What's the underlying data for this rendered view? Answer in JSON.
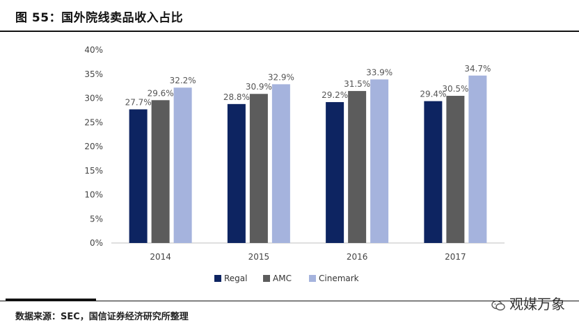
{
  "figure": {
    "title": "图 55：国外院线卖品收入占比",
    "source": "数据来源：SEC，国信证券经济研究所整理",
    "watermark": "观媒万象"
  },
  "colors": {
    "regal": "#0d2461",
    "amc": "#5c5c5c",
    "cinemark": "#a5b3dd",
    "axis_text": "#444444",
    "label_text": "#555555"
  },
  "chart_data": {
    "type": "bar",
    "title": "国外院线卖品收入占比",
    "categories": [
      "2014",
      "2015",
      "2016",
      "2017"
    ],
    "series": [
      {
        "name": "Regal",
        "values": [
          27.7,
          28.8,
          29.2,
          29.4
        ],
        "labels": [
          "27.7%",
          "28.8%",
          "29.2%",
          "29.4%"
        ]
      },
      {
        "name": "AMC",
        "values": [
          29.6,
          30.9,
          31.5,
          30.5
        ],
        "labels": [
          "29.6%",
          "30.9%",
          "31.5%",
          "30.5%"
        ]
      },
      {
        "name": "Cinemark",
        "values": [
          32.2,
          32.9,
          33.9,
          34.7
        ],
        "labels": [
          "32.2%",
          "32.9%",
          "33.9%",
          "34.7%"
        ]
      }
    ],
    "ylim": [
      0,
      40
    ],
    "yticks": [
      0,
      5,
      10,
      15,
      20,
      25,
      30,
      35,
      40
    ],
    "ytick_labels": [
      "0%",
      "5%",
      "10%",
      "15%",
      "20%",
      "25%",
      "30%",
      "35%",
      "40%"
    ],
    "xlabel": "",
    "ylabel": "",
    "grid": false,
    "legend_position": "bottom-center"
  }
}
